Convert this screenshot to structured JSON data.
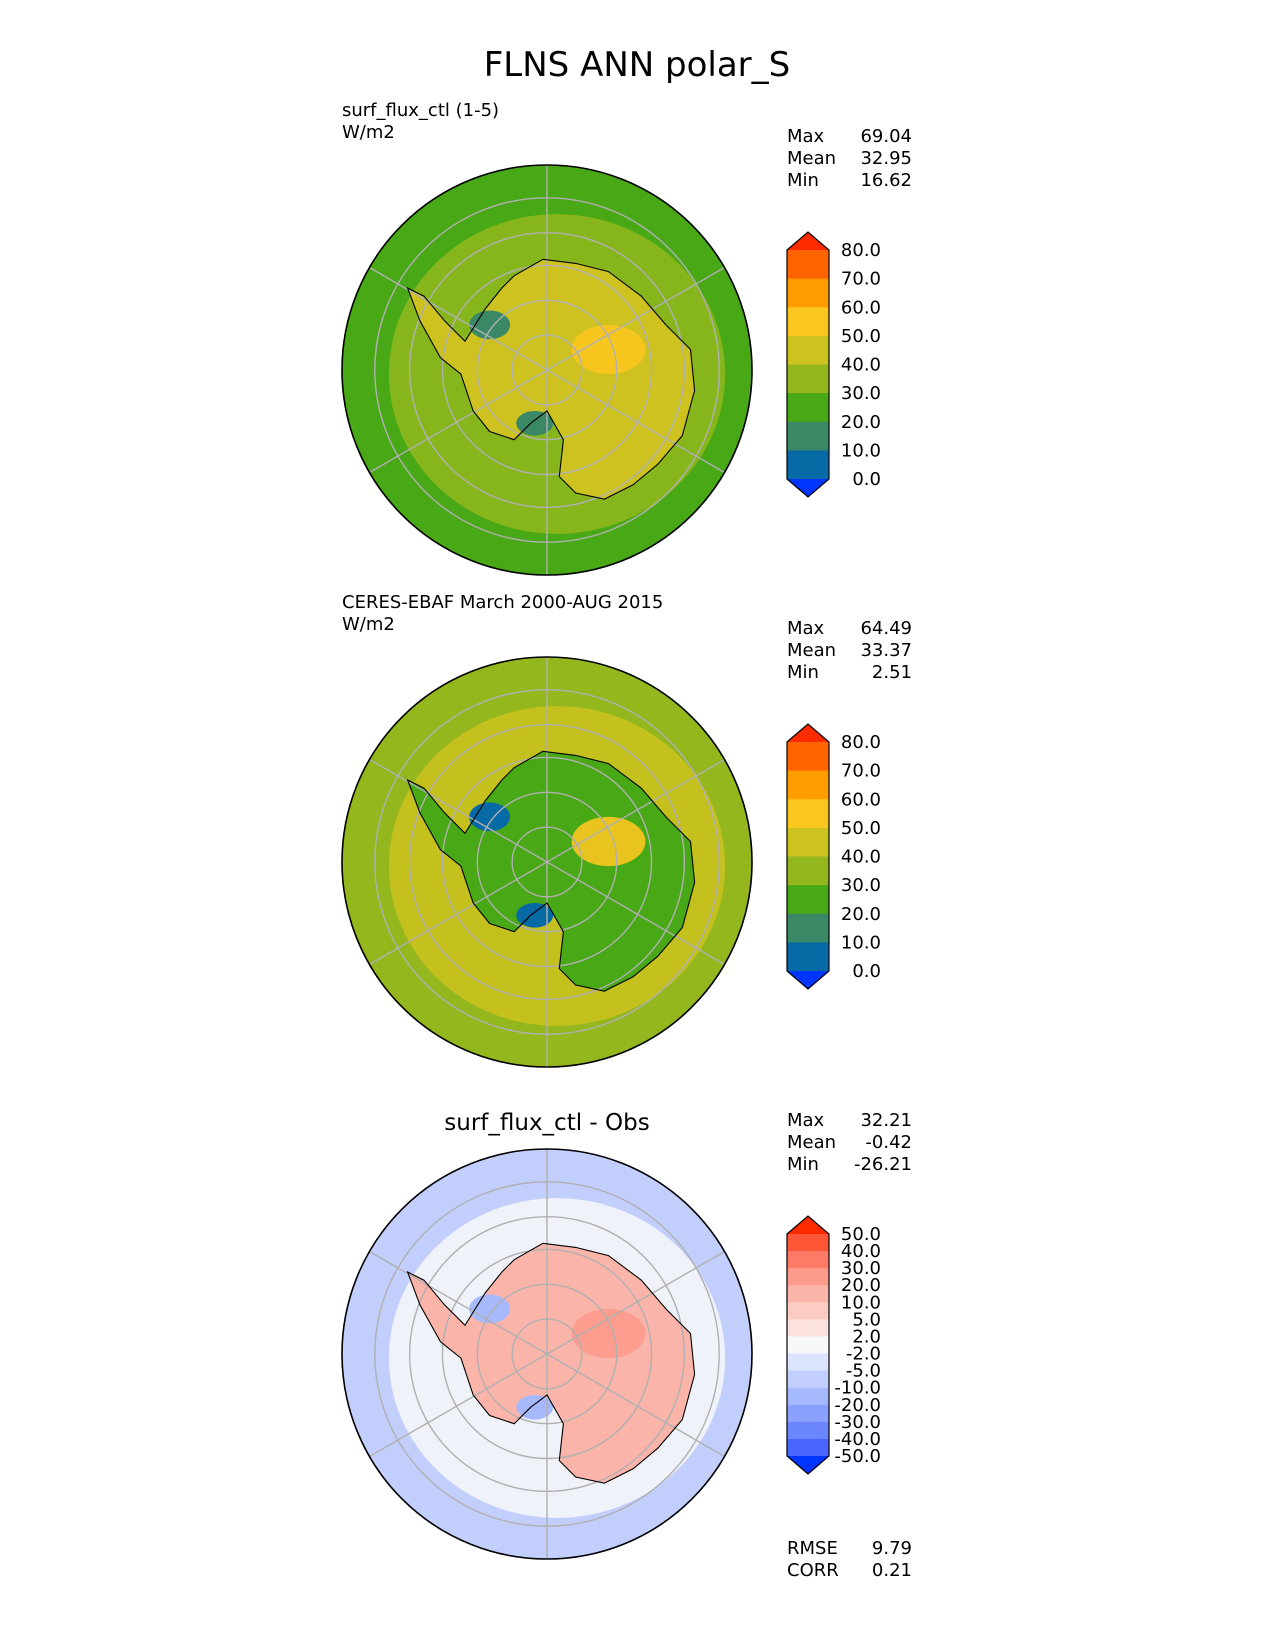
{
  "title": "FLNS ANN polar_S",
  "colors": {
    "land_outline": "#000000",
    "graticule": "#b0b0b0",
    "text": "#000000"
  },
  "chart_data": [
    {
      "type": "heatmap",
      "projection": "south-polar-stereographic",
      "title": "surf_flux_ctl (1-5)",
      "units": "W/m2",
      "stats": [
        {
          "label": "Max",
          "value": "69.04"
        },
        {
          "label": "Mean",
          "value": "32.95"
        },
        {
          "label": "Min",
          "value": "16.62"
        }
      ],
      "colorbar": {
        "labels": [
          "80.0",
          "70.0",
          "60.0",
          "50.0",
          "40.0",
          "30.0",
          "20.0",
          "10.0",
          "0.0"
        ],
        "colors": [
          "#ff2b00",
          "#ff6400",
          "#ff9d00",
          "#fbc61f",
          "#cdc21f",
          "#93b71d",
          "#48a815",
          "#3b8866",
          "#086aa5",
          "#0035ff"
        ],
        "extend": "both"
      },
      "field": {
        "background": "#48a815",
        "land": "#cdc21f",
        "ring": "#93b71d",
        "hot_spot": "#fbc61f",
        "low_spot": "#3b8866"
      }
    },
    {
      "type": "heatmap",
      "projection": "south-polar-stereographic",
      "title": "CERES-EBAF March 2000-AUG 2015",
      "units": "W/m2",
      "stats": [
        {
          "label": "Max",
          "value": "64.49"
        },
        {
          "label": "Mean",
          "value": "33.37"
        },
        {
          "label": "Min",
          "value": "2.51"
        }
      ],
      "colorbar": {
        "labels": [
          "80.0",
          "70.0",
          "60.0",
          "50.0",
          "40.0",
          "30.0",
          "20.0",
          "10.0",
          "0.0"
        ],
        "colors": [
          "#ff2b00",
          "#ff6400",
          "#ff9d00",
          "#fbc61f",
          "#cdc21f",
          "#93b71d",
          "#48a815",
          "#3b8866",
          "#086aa5",
          "#0035ff"
        ],
        "extend": "both"
      },
      "field": {
        "background": "#93b71d",
        "land": "#48a815",
        "ring": "#cdc21f",
        "hot_spot": "#fbc61f",
        "low_spot": "#086aa5"
      }
    },
    {
      "type": "heatmap",
      "projection": "south-polar-stereographic",
      "title": "surf_flux_ctl - Obs",
      "units": "",
      "stats": [
        {
          "label": "Max",
          "value": "32.21"
        },
        {
          "label": "Mean",
          "value": "-0.42"
        },
        {
          "label": "Min",
          "value": "-26.21"
        }
      ],
      "colorbar": {
        "labels": [
          "50.0",
          "40.0",
          "30.0",
          "20.0",
          "10.0",
          "5.0",
          "2.0",
          "-2.0",
          "-5.0",
          "-10.0",
          "-20.0",
          "-30.0",
          "-40.0",
          "-50.0"
        ],
        "colors": [
          "#ff2b00",
          "#fe5637",
          "#fd7b66",
          "#fc9a8c",
          "#fbb4aa",
          "#fbcbc4",
          "#fbe2de",
          "#f8f8f8",
          "#dce3fc",
          "#c2cffd",
          "#a6b9fd",
          "#8aa2fe",
          "#6c87fe",
          "#4a66fe",
          "#0035ff"
        ],
        "extend": "both"
      },
      "field": {
        "background": "#c2cffd",
        "land": "#fbb4aa",
        "ring": "#f8f8f8",
        "hot_spot": "#fc9a8c",
        "low_spot": "#a6b9fd"
      },
      "footer_stats": [
        {
          "label": "RMSE",
          "value": "9.79"
        },
        {
          "label": "CORR",
          "value": "0.21"
        }
      ]
    }
  ]
}
